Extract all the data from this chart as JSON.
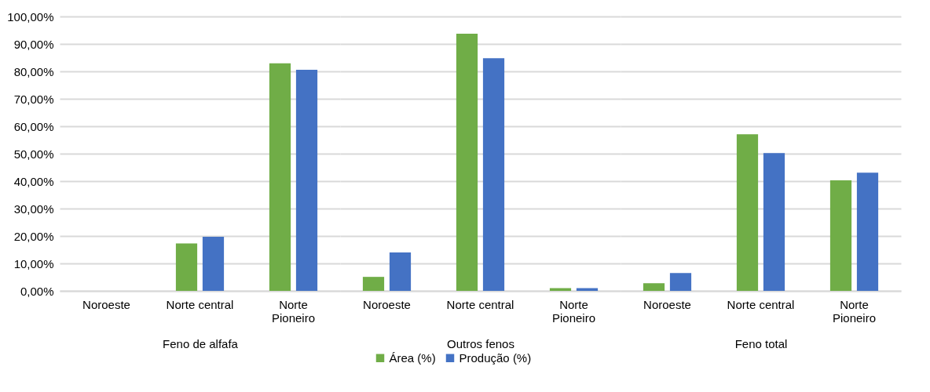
{
  "chart_data": [
    {
      "type": "bar",
      "xlabel": "Feno de alfafa",
      "categories": [
        "Noroeste",
        "Norte central",
        "Norte Pioneiro"
      ],
      "series": [
        {
          "name": "Área (%)",
          "color": "#70ad47",
          "values": [
            0,
            17.3,
            82.9
          ]
        },
        {
          "name": "Produção (%)",
          "color": "#4472c4",
          "values": [
            0,
            19.7,
            80.6
          ]
        }
      ],
      "legend": "bottom",
      "ylim": [
        0,
        100
      ],
      "yticks": [
        {
          "value": 0,
          "label": "0,00%"
        },
        {
          "value": 10,
          "label": "10,00%"
        },
        {
          "value": 20,
          "label": "20,00%"
        },
        {
          "value": 30,
          "label": "30,00%"
        },
        {
          "value": 40,
          "label": "40,00%"
        },
        {
          "value": 50,
          "label": "50,00%"
        },
        {
          "value": 60,
          "label": "60,00%"
        },
        {
          "value": 70,
          "label": "70,00%"
        },
        {
          "value": 80,
          "label": "80,00%"
        },
        {
          "value": 90,
          "label": "90,00%"
        },
        {
          "value": 100,
          "label": "100,00%"
        }
      ],
      "grid": "y"
    },
    {
      "type": "bar",
      "xlabel": "Outros fenos",
      "categories": [
        "Noroeste",
        "Norte central",
        "Norte Pioneiro"
      ],
      "series": [
        {
          "color": "#70ad47",
          "values": [
            5.1,
            93.7,
            1.0
          ]
        },
        {
          "color": "#4472c4",
          "values": [
            14.0,
            84.8,
            1.0
          ]
        }
      ],
      "ylim": [
        0,
        100
      ],
      "yticks": [
        0,
        10,
        20,
        30,
        40,
        50,
        60,
        70,
        80,
        90,
        100
      ],
      "grid": "y",
      "tick_labels": "x"
    },
    {
      "type": "bar",
      "xlabel": "Feno total",
      "categories": [
        "Noroeste",
        "Norte central",
        "Norte Pioneiro"
      ],
      "series": [
        {
          "color": "#70ad47",
          "values": [
            2.8,
            57.1,
            40.3
          ]
        },
        {
          "color": "#4472c4",
          "values": [
            6.5,
            50.2,
            43.1
          ]
        }
      ],
      "ylim": [
        0,
        100
      ],
      "yticks": [
        0,
        10,
        20,
        30,
        40,
        50,
        60,
        70,
        80,
        90,
        100
      ],
      "grid": "y",
      "tick_labels": "x"
    }
  ]
}
